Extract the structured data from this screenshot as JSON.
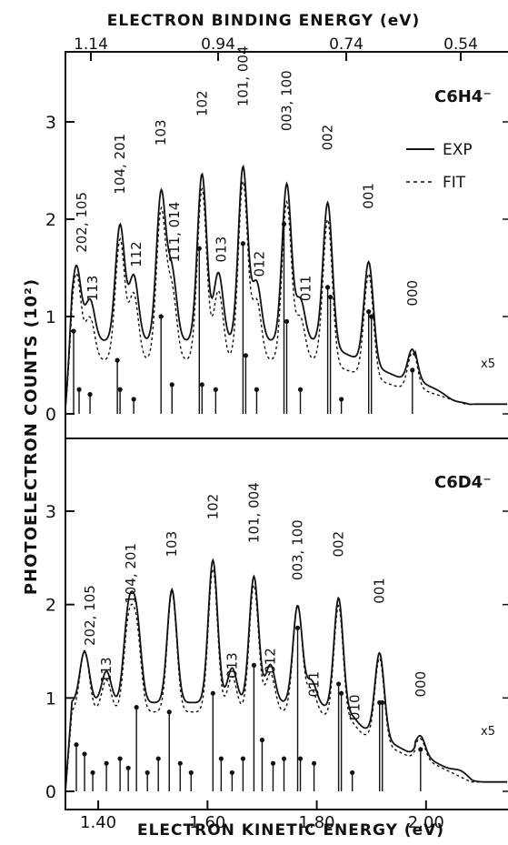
{
  "chart_data": [
    {
      "type": "line",
      "title": "",
      "top_axis_label": "ELECTRON BINDING ENERGY (eV)",
      "top_ticks": [
        "1.14",
        "0.94",
        "0.74",
        "0.54"
      ],
      "xlabel": "",
      "ylabel": "",
      "xlim": [
        1.34,
        2.15
      ],
      "ylim": [
        0,
        3.6
      ],
      "y_ticks": [
        "3",
        "2",
        "1",
        "0"
      ],
      "panel_label": "C6H4⁻",
      "legend": {
        "placement": "top-right",
        "entries": [
          "EXP",
          "FIT"
        ]
      },
      "scale_note": "x5",
      "series": [
        {
          "name": "EXP",
          "style": "solid",
          "peaks": [
            [
              1.36,
              1.55
            ],
            [
              1.385,
              1.05
            ],
            [
              1.44,
              2.15
            ],
            [
              1.465,
              1.4
            ],
            [
              1.515,
              2.6
            ],
            [
              1.535,
              1.45
            ],
            [
              1.59,
              2.9
            ],
            [
              1.62,
              1.45
            ],
            [
              1.665,
              3.0
            ],
            [
              1.69,
              1.3
            ],
            [
              1.745,
              2.75
            ],
            [
              1.77,
              1.05
            ],
            [
              1.82,
              2.55
            ],
            [
              1.895,
              1.95
            ],
            [
              1.975,
              0.95
            ],
            [
              2.05,
              0.4
            ]
          ],
          "baseline": 0.75
        },
        {
          "name": "FIT",
          "style": "dashed",
          "peaks": [
            [
              1.36,
              1.6
            ],
            [
              1.385,
              0.95
            ],
            [
              1.44,
              2.1
            ],
            [
              1.465,
              1.3
            ],
            [
              1.515,
              2.5
            ],
            [
              1.535,
              1.35
            ],
            [
              1.59,
              2.85
            ],
            [
              1.62,
              1.35
            ],
            [
              1.665,
              2.95
            ],
            [
              1.69,
              1.2
            ],
            [
              1.745,
              2.65
            ],
            [
              1.77,
              0.95
            ],
            [
              1.82,
              2.45
            ],
            [
              1.895,
              1.85
            ],
            [
              1.975,
              0.9
            ]
          ],
          "baseline": 0.55
        }
      ],
      "annotations": [
        {
          "text": "202, 105",
          "x": 1.37,
          "y": 1.6
        },
        {
          "text": "113",
          "x": 1.39,
          "y": 1.1
        },
        {
          "text": "104, 201",
          "x": 1.44,
          "y": 2.2
        },
        {
          "text": "112",
          "x": 1.47,
          "y": 1.45
        },
        {
          "text": "103",
          "x": 1.515,
          "y": 2.7
        },
        {
          "text": "111, 014",
          "x": 1.54,
          "y": 1.5
        },
        {
          "text": "102",
          "x": 1.59,
          "y": 3.0
        },
        {
          "text": "013",
          "x": 1.625,
          "y": 1.5
        },
        {
          "text": "101, 004",
          "x": 1.665,
          "y": 3.1
        },
        {
          "text": "012",
          "x": 1.695,
          "y": 1.35
        },
        {
          "text": "003, 100",
          "x": 1.745,
          "y": 2.85
        },
        {
          "text": "011",
          "x": 1.78,
          "y": 1.1
        },
        {
          "text": "002",
          "x": 1.82,
          "y": 2.65
        },
        {
          "text": "001",
          "x": 1.895,
          "y": 2.05
        },
        {
          "text": "000",
          "x": 1.975,
          "y": 1.05
        }
      ],
      "sticks": [
        [
          1.355,
          0.85
        ],
        [
          1.365,
          0.25
        ],
        [
          1.385,
          0.2
        ],
        [
          1.435,
          0.55
        ],
        [
          1.44,
          0.25
        ],
        [
          1.465,
          0.15
        ],
        [
          1.515,
          1.0
        ],
        [
          1.535,
          0.3
        ],
        [
          1.585,
          1.7
        ],
        [
          1.59,
          0.3
        ],
        [
          1.615,
          0.25
        ],
        [
          1.665,
          1.75
        ],
        [
          1.67,
          0.6
        ],
        [
          1.69,
          0.25
        ],
        [
          1.74,
          1.95
        ],
        [
          1.745,
          0.95
        ],
        [
          1.77,
          0.25
        ],
        [
          1.82,
          1.3
        ],
        [
          1.825,
          1.2
        ],
        [
          1.845,
          0.15
        ],
        [
          1.895,
          1.05
        ],
        [
          1.9,
          1.0
        ],
        [
          1.975,
          0.45
        ]
      ]
    },
    {
      "type": "line",
      "title": "",
      "xlabel": "ELECTRON KINETIC ENERGY (eV)",
      "x_ticks": [
        "1.40",
        "1.60",
        "1.80",
        "2.00"
      ],
      "ylabel": "",
      "xlim": [
        1.34,
        2.15
      ],
      "ylim": [
        0,
        3.6
      ],
      "y_ticks": [
        "3",
        "2",
        "1",
        "0"
      ],
      "panel_label": "C6D4⁻",
      "scale_note": "x5",
      "series": [
        {
          "name": "EXP",
          "style": "solid",
          "peaks": [
            [
              1.375,
              1.35
            ],
            [
              1.415,
              1.05
            ],
            [
              1.455,
              1.85
            ],
            [
              1.47,
              1.8
            ],
            [
              1.535,
              2.3
            ],
            [
              1.61,
              2.75
            ],
            [
              1.645,
              1.1
            ],
            [
              1.685,
              2.5
            ],
            [
              1.715,
              1.15
            ],
            [
              1.765,
              2.05
            ],
            [
              1.79,
              0.9
            ],
            [
              1.84,
              2.35
            ],
            [
              1.865,
              0.65
            ],
            [
              1.915,
              1.85
            ],
            [
              1.99,
              0.85
            ],
            [
              2.065,
              0.65
            ]
          ],
          "baseline": 0.95
        },
        {
          "name": "FIT",
          "style": "dashed",
          "peaks": [
            [
              1.375,
              1.45
            ],
            [
              1.415,
              1.0
            ],
            [
              1.455,
              1.75
            ],
            [
              1.47,
              1.7
            ],
            [
              1.535,
              2.35
            ],
            [
              1.61,
              2.7
            ],
            [
              1.645,
              1.05
            ],
            [
              1.685,
              2.45
            ],
            [
              1.715,
              1.1
            ],
            [
              1.765,
              2.15
            ],
            [
              1.79,
              0.85
            ],
            [
              1.84,
              2.3
            ],
            [
              1.865,
              0.6
            ],
            [
              1.915,
              1.8
            ],
            [
              1.99,
              0.8
            ]
          ],
          "baseline": 0.85
        }
      ],
      "annotations": [
        {
          "text": "202, 105",
          "x": 1.385,
          "y": 1.5
        },
        {
          "text": "113",
          "x": 1.415,
          "y": 1.1
        },
        {
          "text": "104, 201",
          "x": 1.46,
          "y": 1.95
        },
        {
          "text": "103",
          "x": 1.535,
          "y": 2.45
        },
        {
          "text": "102",
          "x": 1.61,
          "y": 2.85
        },
        {
          "text": "013",
          "x": 1.645,
          "y": 1.15
        },
        {
          "text": "101, 004",
          "x": 1.685,
          "y": 2.6
        },
        {
          "text": "012",
          "x": 1.715,
          "y": 1.2
        },
        {
          "text": "003, 100",
          "x": 1.765,
          "y": 2.2
        },
        {
          "text": "011",
          "x": 1.795,
          "y": 0.95
        },
        {
          "text": "002",
          "x": 1.84,
          "y": 2.45
        },
        {
          "text": "010",
          "x": 1.87,
          "y": 0.7
        },
        {
          "text": "001",
          "x": 1.915,
          "y": 1.95
        },
        {
          "text": "000",
          "x": 1.99,
          "y": 0.95
        }
      ],
      "sticks": [
        [
          1.36,
          0.5
        ],
        [
          1.375,
          0.4
        ],
        [
          1.39,
          0.2
        ],
        [
          1.415,
          0.3
        ],
        [
          1.44,
          0.35
        ],
        [
          1.455,
          0.25
        ],
        [
          1.47,
          0.9
        ],
        [
          1.49,
          0.2
        ],
        [
          1.51,
          0.35
        ],
        [
          1.53,
          0.85
        ],
        [
          1.55,
          0.3
        ],
        [
          1.57,
          0.2
        ],
        [
          1.61,
          1.05
        ],
        [
          1.625,
          0.35
        ],
        [
          1.645,
          0.2
        ],
        [
          1.665,
          0.35
        ],
        [
          1.685,
          1.35
        ],
        [
          1.7,
          0.55
        ],
        [
          1.72,
          0.3
        ],
        [
          1.74,
          0.35
        ],
        [
          1.765,
          1.75
        ],
        [
          1.77,
          0.35
        ],
        [
          1.795,
          0.3
        ],
        [
          1.84,
          1.15
        ],
        [
          1.845,
          1.05
        ],
        [
          1.865,
          0.2
        ],
        [
          1.915,
          0.95
        ],
        [
          1.92,
          0.95
        ],
        [
          1.99,
          0.45
        ]
      ]
    }
  ]
}
